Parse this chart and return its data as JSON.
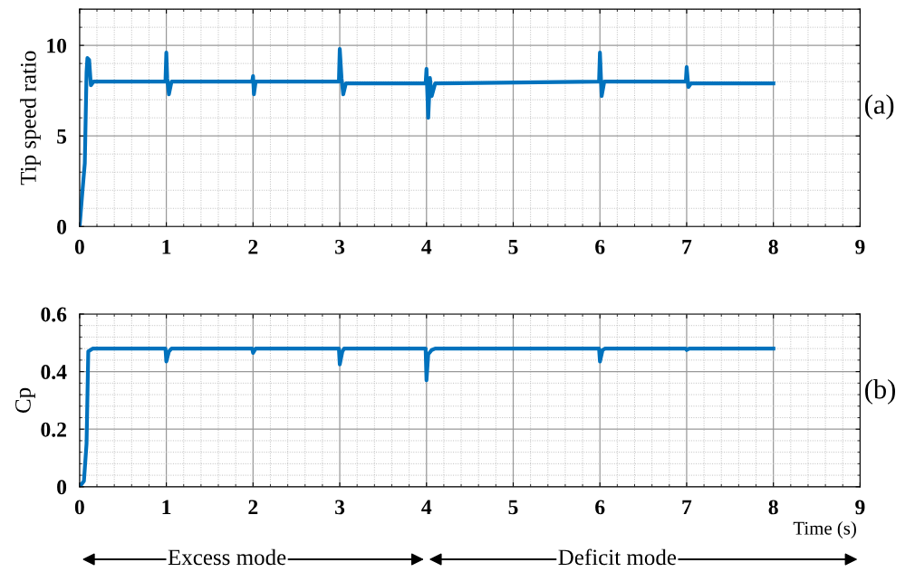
{
  "chart_data": [
    {
      "type": "line",
      "ylabel": "Tip speed ratio",
      "annotations": [
        "(a)"
      ],
      "xlim": [
        0,
        9
      ],
      "xticks": [
        0,
        1,
        2,
        3,
        4,
        5,
        6,
        7,
        8,
        9
      ],
      "ylim": [
        0,
        12
      ],
      "yticks": [
        0,
        5,
        10
      ],
      "grid": true,
      "series": [
        {
          "color": "#0072bd",
          "x": [
            0,
            0.03,
            0.06,
            0.08,
            0.09,
            0.11,
            0.13,
            0.16,
            0.99,
            1.0,
            1.01,
            1.03,
            1.06,
            1.99,
            2.0,
            2.01,
            2.03,
            2.99,
            3.0,
            3.02,
            3.04,
            3.07,
            3.99,
            4.0,
            4.02,
            4.04,
            4.06,
            4.1,
            5.99,
            6.0,
            6.02,
            6.05,
            6.99,
            7.0,
            7.02,
            7.05,
            8.0
          ],
          "values": [
            0,
            1.8,
            3.5,
            8.5,
            9.3,
            9.2,
            7.8,
            8.0,
            8.0,
            9.6,
            8.2,
            7.3,
            8.0,
            8.0,
            8.3,
            7.3,
            8.0,
            8.0,
            9.8,
            8.2,
            7.3,
            7.9,
            7.9,
            8.7,
            6.0,
            8.2,
            7.2,
            7.9,
            8.0,
            9.6,
            7.2,
            8.0,
            8.0,
            8.8,
            7.7,
            7.9,
            7.9
          ]
        }
      ]
    },
    {
      "type": "line",
      "ylabel": "Cp",
      "xlabel": "Time (s)",
      "annotations": [
        "(b)",
        "Excess mode",
        "Deficit mode"
      ],
      "xlim": [
        0,
        9
      ],
      "xticks": [
        0,
        1,
        2,
        3,
        4,
        5,
        6,
        7,
        8,
        9
      ],
      "ylim": [
        0,
        0.6
      ],
      "yticks": [
        0,
        0.2,
        0.4,
        0.6
      ],
      "grid": true,
      "series": [
        {
          "color": "#0072bd",
          "x": [
            0,
            0.05,
            0.08,
            0.1,
            0.15,
            0.99,
            1.0,
            1.03,
            1.06,
            1.99,
            2.0,
            2.03,
            2.99,
            3.0,
            3.03,
            3.05,
            3.99,
            4.0,
            4.02,
            4.06,
            4.1,
            5.99,
            6.0,
            6.03,
            6.06,
            6.99,
            7.0,
            7.03,
            8.0
          ],
          "values": [
            0,
            0.02,
            0.15,
            0.47,
            0.48,
            0.48,
            0.435,
            0.47,
            0.48,
            0.48,
            0.465,
            0.48,
            0.48,
            0.425,
            0.47,
            0.48,
            0.48,
            0.37,
            0.46,
            0.475,
            0.48,
            0.48,
            0.435,
            0.475,
            0.48,
            0.48,
            0.475,
            0.48,
            0.48
          ]
        }
      ]
    }
  ]
}
